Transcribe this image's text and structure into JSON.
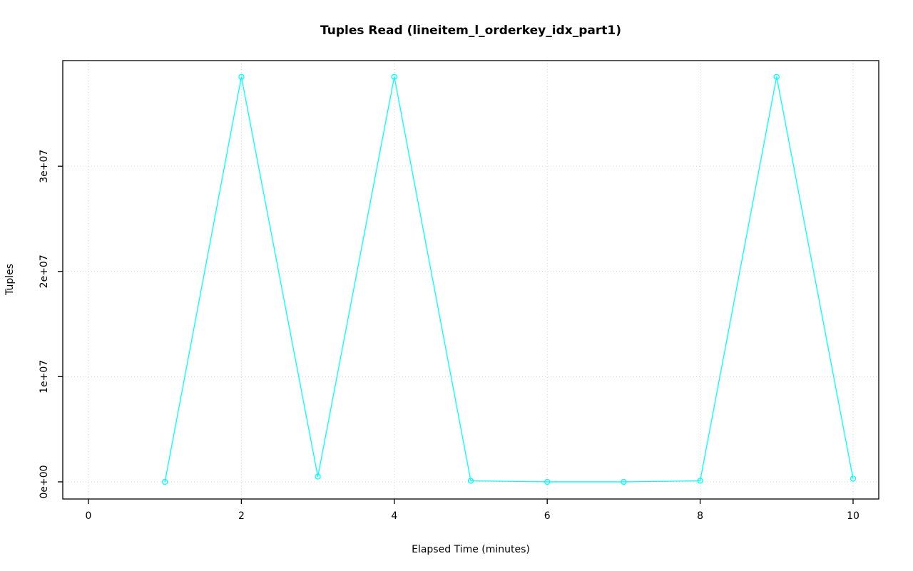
{
  "chart_data": {
    "type": "line",
    "title": "Tuples Read (lineitem_l_orderkey_idx_part1)",
    "xlabel": "Elapsed Time (minutes)",
    "ylabel": "Tuples",
    "x": [
      1,
      2,
      3,
      4,
      5,
      6,
      7,
      8,
      9,
      10
    ],
    "values": [
      0,
      38500000,
      500000,
      38500000,
      100000,
      0,
      0,
      100000,
      38500000,
      300000
    ],
    "x_ticks": [
      0,
      2,
      4,
      6,
      8,
      10
    ],
    "x_tick_labels": [
      "0",
      "2",
      "4",
      "6",
      "8",
      "10"
    ],
    "y_ticks": [
      0,
      10000000,
      20000000,
      30000000
    ],
    "y_tick_labels": [
      "0e+00",
      "1e+07",
      "2e+07",
      "3e+07"
    ],
    "xlim": [
      -0.336,
      10.336
    ],
    "ylim": [
      -1630000,
      40040000
    ],
    "grid": true,
    "legend": "none",
    "line_color": "#00FFFF",
    "marker": "open-circle",
    "marker_color": "#00FFFF",
    "grid_color": "#D3D3D3",
    "box_color": "#000000"
  }
}
